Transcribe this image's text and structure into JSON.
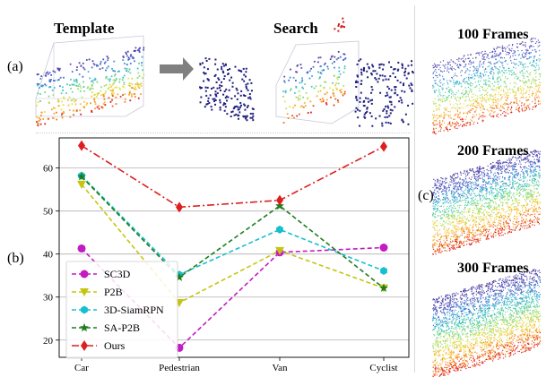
{
  "panel_a": {
    "label": "(a)",
    "template_title": "Template",
    "search_title": "Search"
  },
  "panel_b": {
    "label": "(b)"
  },
  "panel_c": {
    "label": "(c)",
    "frames": [
      "100 Frames",
      "200 Frames",
      "300 Frames"
    ]
  },
  "colors": {
    "SC3D": "#c31ac3",
    "P2B": "#c5c50f",
    "3D-SiamRPN": "#17bfcf",
    "SA-P2B": "#1e7d1e",
    "Ours": "#dd1f1f"
  },
  "chart_data": {
    "type": "line",
    "categories": [
      "Car",
      "Pedestrian",
      "Van",
      "Cyclist"
    ],
    "ylim": [
      16,
      67
    ],
    "yticks": [
      20,
      30,
      40,
      50,
      60
    ],
    "grid": "horizontal",
    "legend": "bottom-left",
    "series": [
      {
        "name": "SC3D",
        "values": [
          41.3,
          18.2,
          40.4,
          41.5
        ],
        "marker": "circle",
        "dash": "dashed"
      },
      {
        "name": "P2B",
        "values": [
          56.2,
          28.7,
          40.8,
          32.1
        ],
        "marker": "triangle-down",
        "dash": "dashed"
      },
      {
        "name": "3D-SiamRPN",
        "values": [
          58.2,
          35.2,
          45.7,
          36.1
        ],
        "marker": "hexagon",
        "dash": "dashed"
      },
      {
        "name": "SA-P2B",
        "values": [
          58.0,
          34.6,
          51.2,
          32.1
        ],
        "marker": "star",
        "dash": "dashed"
      },
      {
        "name": "Ours",
        "values": [
          65.2,
          50.9,
          52.5,
          65.0
        ],
        "marker": "diamond",
        "dash": "dashdot"
      }
    ]
  }
}
